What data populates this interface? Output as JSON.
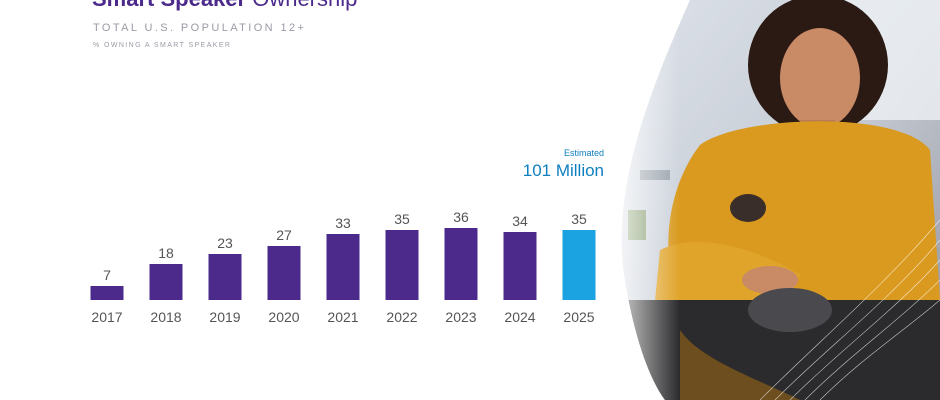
{
  "title": {
    "bold": "Smart Speaker",
    "rest": " Ownership"
  },
  "subtitle": "TOTAL U.S. POPULATION 12+",
  "subsubtitle": "% OWNING A SMART SPEAKER",
  "estimate": {
    "label": "Estimated",
    "value": "101 Million"
  },
  "colors": {
    "primary": "#4b2a8c",
    "highlight": "#1aa3e0",
    "text": "#555555"
  },
  "chart_data": {
    "type": "bar",
    "categories": [
      "2017",
      "2018",
      "2019",
      "2020",
      "2021",
      "2022",
      "2023",
      "2024",
      "2025"
    ],
    "values": [
      7,
      18,
      23,
      27,
      33,
      35,
      36,
      34,
      35
    ],
    "highlight_index": 8,
    "title": "Smart Speaker Ownership",
    "xlabel": "",
    "ylabel": "",
    "ylim": [
      0,
      40
    ],
    "grid": false,
    "legend": "none"
  }
}
